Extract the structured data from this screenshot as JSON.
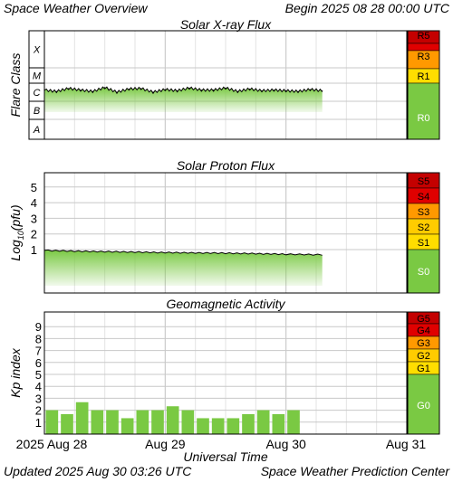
{
  "header": {
    "title": "Space Weather Overview",
    "begin_label": "Begin",
    "begin_value": "2025 08 28 00:00 UTC"
  },
  "footer": {
    "updated_label": "Updated",
    "updated_value": "2025 Aug 30 03:26 UTC",
    "source": "Space Weather Prediction Center"
  },
  "colors": {
    "fill_green": "#7ac943",
    "line_black": "#000000",
    "scale_green": "#7ac943",
    "scale_yellow": "#ffdd00",
    "scale_orange": "#ff9900",
    "scale_red": "#e00000",
    "scale_darkred": "#c40000"
  },
  "chart_data": [
    {
      "type": "area",
      "title": "Solar X-ray Flux",
      "ylabel": "Flare Class",
      "y_ticks": [
        "X",
        "M",
        "C",
        "B",
        "A"
      ],
      "x_range_days": [
        0,
        3
      ],
      "x": [
        0.0,
        0.1,
        0.2,
        0.3,
        0.4,
        0.5,
        0.6,
        0.7,
        0.8,
        0.9,
        1.0,
        1.1,
        1.2,
        1.3,
        1.4,
        1.5,
        1.6,
        1.7,
        1.8,
        1.9,
        2.0,
        2.1,
        2.2,
        2.3
      ],
      "values": [
        "C1.3",
        "C1.1",
        "C1.6",
        "C1.3",
        "C1.1",
        "C1.8",
        "C1.0",
        "C1.5",
        "C1.6",
        "C1.0",
        "C1.4",
        "C1.2",
        "C1.7",
        "C1.3",
        "C1.3",
        "C1.7",
        "C1.1",
        "C1.5",
        "C1.2",
        "C1.3",
        "C1.2",
        "C1.1",
        "C1.4",
        "C1.2"
      ],
      "scale": [
        {
          "label": "R5",
          "color": "#c40000"
        },
        {
          "label": "R3",
          "color": "#ff9900"
        },
        {
          "label": "R1",
          "color": "#ffdd00"
        },
        {
          "label": "R0",
          "color": "#7ac943"
        }
      ]
    },
    {
      "type": "area",
      "title": "Solar Proton Flux",
      "ylabel": "Log10(pfu)",
      "ylabel_main": "Log",
      "ylabel_sub": "10",
      "ylabel_tail": "(pfu)",
      "y_ticks": [
        "5",
        "4",
        "3",
        "2",
        "1"
      ],
      "x_range_days": [
        0,
        3
      ],
      "x": [
        0.0,
        0.25,
        0.5,
        0.75,
        1.0,
        1.25,
        1.5,
        1.75,
        2.0,
        2.3
      ],
      "y": [
        0.95,
        0.9,
        0.87,
        0.84,
        0.81,
        0.79,
        0.77,
        0.74,
        0.7,
        0.67
      ],
      "scale": [
        {
          "label": "S5",
          "color": "#c40000"
        },
        {
          "label": "S4",
          "color": "#e00000"
        },
        {
          "label": "S3",
          "color": "#ff9900"
        },
        {
          "label": "S2",
          "color": "#ffcc00"
        },
        {
          "label": "S1",
          "color": "#ffdd00"
        },
        {
          "label": "S0",
          "color": "#7ac943"
        }
      ]
    },
    {
      "type": "bar",
      "title": "Geomagnetic Activity",
      "ylabel": "Kp index",
      "y_ticks": [
        "9",
        "8",
        "7",
        "6",
        "5",
        "4",
        "3",
        "2",
        "1"
      ],
      "ylim": [
        0,
        9
      ],
      "bar_x_start_days": [
        0.0,
        0.125,
        0.25,
        0.375,
        0.5,
        0.625,
        0.75,
        0.875,
        1.0,
        1.125,
        1.25,
        1.375,
        1.5,
        1.625,
        1.75,
        1.875,
        2.0,
        2.125
      ],
      "values": [
        2.0,
        1.67,
        2.67,
        2.0,
        2.0,
        1.33,
        2.0,
        2.0,
        2.33,
        2.0,
        1.33,
        1.33,
        1.33,
        1.67,
        2.0,
        1.67,
        2.0
      ],
      "scale": [
        {
          "label": "G5",
          "color": "#c40000"
        },
        {
          "label": "G4",
          "color": "#e00000"
        },
        {
          "label": "G3",
          "color": "#ff9900"
        },
        {
          "label": "G2",
          "color": "#ffcc00"
        },
        {
          "label": "G1",
          "color": "#ffdd00"
        },
        {
          "label": "G0",
          "color": "#7ac943"
        }
      ]
    }
  ],
  "x_axis": {
    "tick_labels": [
      "2025 Aug 28",
      "Aug 29",
      "Aug 30",
      "Aug 31"
    ],
    "xlabel": "Universal Time"
  }
}
